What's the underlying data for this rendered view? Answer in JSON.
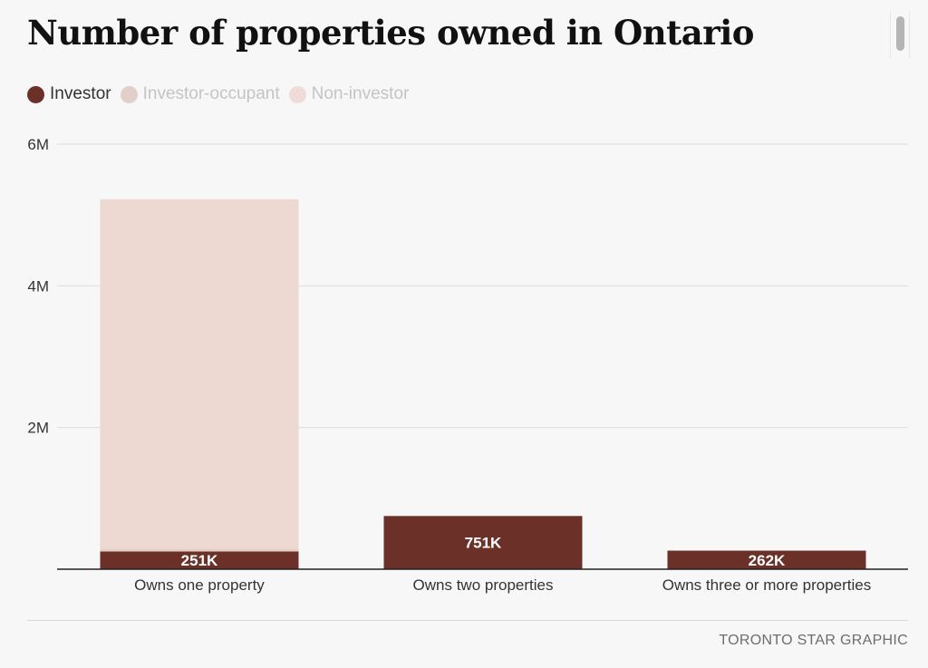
{
  "chart_data": {
    "type": "bar",
    "stacked": true,
    "title": "Number of properties owned in Ontario",
    "xlabel": "",
    "ylabel": "",
    "ylim": [
      0,
      6000000
    ],
    "yticks": [
      {
        "value": 2000000,
        "label": "2M"
      },
      {
        "value": 4000000,
        "label": "4M"
      },
      {
        "value": 6000000,
        "label": "6M"
      }
    ],
    "grid": true,
    "legend_position": "top-left",
    "categories": [
      "Owns one property",
      "Owns two properties",
      "Owns three or more properties"
    ],
    "series": [
      {
        "name": "Investor",
        "color": "#6b3128",
        "values": [
          251000,
          751000,
          262000
        ],
        "labels": [
          "251K",
          "751K",
          "262K"
        ]
      },
      {
        "name": "Investor-occupant",
        "color": "#e3cfca",
        "values": [
          40000,
          0,
          0
        ]
      },
      {
        "name": "Non-investor",
        "color": "#edd8d2",
        "values": [
          4930000,
          0,
          0
        ]
      }
    ],
    "legend": [
      {
        "name": "Investor",
        "color": "#6b3128",
        "text_color": "#333333"
      },
      {
        "name": "Investor-occupant",
        "color": "#e3cfca",
        "text_color": "#c4c4c4"
      },
      {
        "name": "Non-investor",
        "color": "#f0dcd6",
        "text_color": "#c4c4c4"
      }
    ]
  },
  "footer": {
    "credit": "TORONTO STAR GRAPHIC"
  }
}
